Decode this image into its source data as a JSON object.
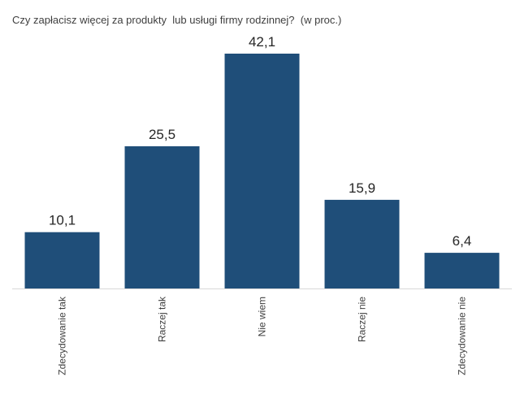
{
  "chart_data": {
    "type": "bar",
    "title": "Czy zapłacisz więcej za produkty  lub usługi firmy rodzinnej?  (w proc.)",
    "categories": [
      "Zdecydowanie tak",
      "Raczej tak",
      "Nie wiem",
      "Raczej nie",
      "Zdecydowanie nie"
    ],
    "values": [
      10.1,
      25.5,
      42.1,
      15.9,
      6.4
    ],
    "value_labels": [
      "10,1",
      "25,5",
      "42,1",
      "15,9",
      "6,4"
    ],
    "xlabel": "",
    "ylabel": "",
    "ylim": [
      0,
      42.1
    ],
    "grid": false,
    "legend": "none",
    "colors": {
      "bar": "#1f4e79",
      "axis": "#d9d9d9"
    }
  }
}
